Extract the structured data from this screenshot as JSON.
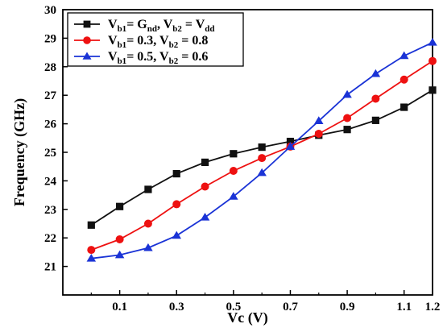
{
  "chart_data": {
    "type": "line",
    "xlabel": "Vc (V)",
    "ylabel": "Frequency (GHz)",
    "xlim": [
      -0.1,
      1.2
    ],
    "ylim": [
      20,
      30
    ],
    "x_ticks": [
      0.1,
      0.3,
      0.5,
      0.7,
      0.9,
      1.1,
      1.2
    ],
    "y_ticks": [
      21,
      22,
      23,
      24,
      25,
      26,
      27,
      28,
      29,
      30
    ],
    "x": [
      0.0,
      0.1,
      0.2,
      0.3,
      0.4,
      0.5,
      0.6,
      0.7,
      0.8,
      0.9,
      1.0,
      1.1,
      1.2
    ],
    "legend_placement": "top-left",
    "grid": false,
    "series": [
      {
        "name": "Vb1= Gnd, Vb2 = Vdd",
        "legend_parts": [
          {
            "t": "V",
            "s": "n"
          },
          {
            "t": "b1",
            "s": "sub"
          },
          {
            "t": "= G",
            "s": "n"
          },
          {
            "t": "nd",
            "s": "sub"
          },
          {
            "t": ", V",
            "s": "n"
          },
          {
            "t": "b2",
            "s": "sub"
          },
          {
            "t": " = V",
            "s": "n"
          },
          {
            "t": "dd",
            "s": "sub"
          }
        ],
        "color": "#111111",
        "marker": "square",
        "values": [
          22.45,
          23.1,
          23.7,
          24.25,
          24.65,
          24.95,
          25.18,
          25.38,
          25.6,
          25.8,
          26.12,
          26.58,
          27.18
        ]
      },
      {
        "name": "Vb1= 0.3, Vb2 = 0.8",
        "legend_parts": [
          {
            "t": "V",
            "s": "n"
          },
          {
            "t": "b1",
            "s": "sub"
          },
          {
            "t": "= 0.3, V",
            "s": "n"
          },
          {
            "t": "b2",
            "s": "sub"
          },
          {
            "t": " = 0.8",
            "s": "n"
          }
        ],
        "color": "#ee1111",
        "marker": "circle",
        "values": [
          21.58,
          21.95,
          22.5,
          23.18,
          23.8,
          24.35,
          24.8,
          25.2,
          25.65,
          26.2,
          26.88,
          27.55,
          28.2
        ]
      },
      {
        "name": "Vb1= 0.5, Vb2 = 0.6",
        "legend_parts": [
          {
            "t": "V",
            "s": "n"
          },
          {
            "t": "b1",
            "s": "sub"
          },
          {
            "t": "= 0.5, V",
            "s": "n"
          },
          {
            "t": "b2",
            "s": "sub"
          },
          {
            "t": " = 0.6",
            "s": "n"
          }
        ],
        "color": "#1a33d6",
        "marker": "triangle",
        "values": [
          21.28,
          21.4,
          21.65,
          22.08,
          22.72,
          23.45,
          24.28,
          25.2,
          26.1,
          27.02,
          27.75,
          28.38,
          28.85
        ]
      }
    ]
  }
}
